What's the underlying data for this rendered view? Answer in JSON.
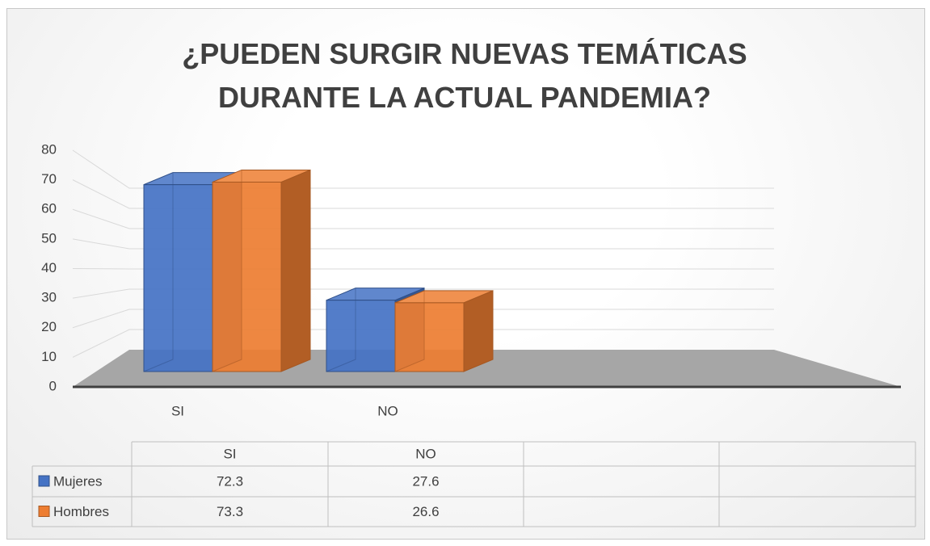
{
  "chart_data": {
    "type": "bar3d",
    "title": "¿PUEDEN SURGIR NUEVAS TEMÁTICAS DURANTE LA ACTUAL PANDEMIA?",
    "categories": [
      "SI",
      "NO"
    ],
    "series": [
      {
        "name": "Mujeres",
        "color": "#4472c4",
        "values": [
          72.3,
          27.6
        ]
      },
      {
        "name": "Hombres",
        "color": "#ed7d31",
        "values": [
          73.3,
          26.6
        ]
      }
    ],
    "ylim": [
      0,
      80
    ],
    "yticks": [
      0,
      10,
      20,
      30,
      40,
      50,
      60,
      70,
      80
    ],
    "grid": true,
    "data_table": true
  }
}
